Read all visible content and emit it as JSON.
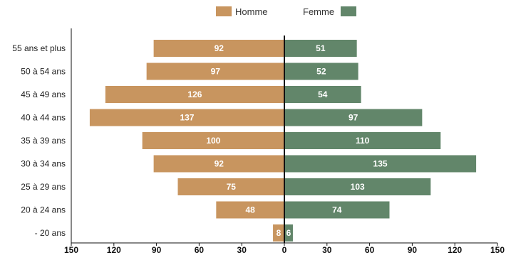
{
  "chart_data": {
    "type": "bar",
    "orientation": "horizontal",
    "layout": "population-pyramid",
    "categories": [
      "55 ans et plus",
      "50 à 54 ans",
      "45 à 49 ans",
      "40 à 44 ans",
      "35 à 39 ans",
      "30 à 34 ans",
      "25 à 29 ans",
      "20 à 24 ans",
      "- 20 ans"
    ],
    "series": [
      {
        "name": "Homme",
        "side": "left",
        "color": "#c8955f",
        "values": [
          92,
          97,
          126,
          137,
          100,
          92,
          75,
          48,
          8
        ]
      },
      {
        "name": "Femme",
        "side": "right",
        "color": "#62866a",
        "values": [
          51,
          52,
          54,
          97,
          110,
          135,
          103,
          74,
          6
        ]
      }
    ],
    "xlim": [
      -150,
      150
    ],
    "x_ticks": [
      -150,
      -120,
      -90,
      -60,
      -30,
      0,
      30,
      60,
      90,
      120,
      150
    ],
    "x_tick_labels": [
      "150",
      "120",
      "90",
      "60",
      "30",
      "0",
      "30",
      "60",
      "90",
      "120",
      "150"
    ],
    "legend": {
      "position": "top-center",
      "entries": [
        "Homme",
        "Femme"
      ]
    },
    "grid": false,
    "data_labels": true
  }
}
